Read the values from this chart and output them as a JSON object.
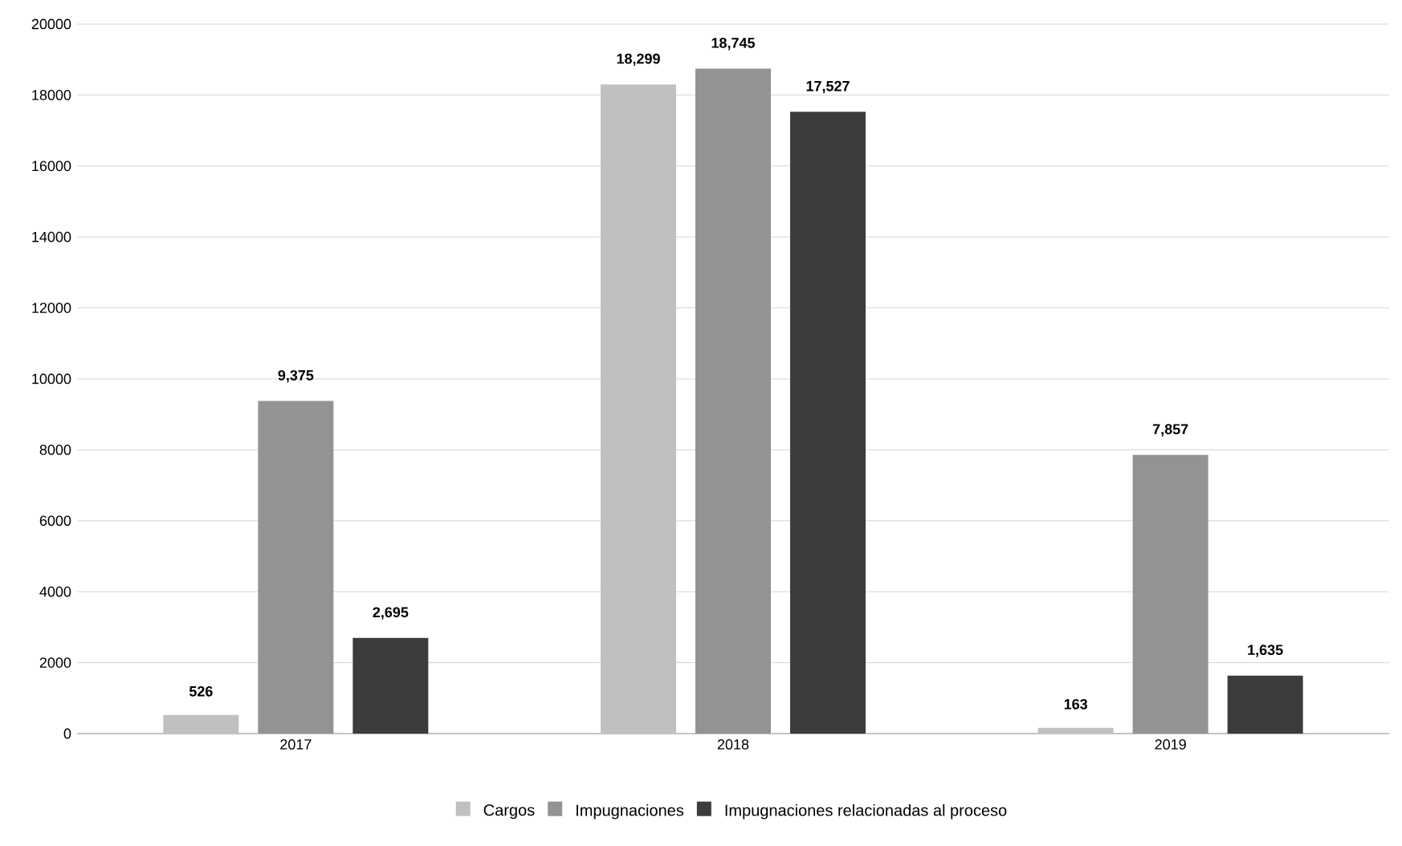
{
  "chart_data": {
    "type": "bar",
    "categories": [
      "2017",
      "2018",
      "2019"
    ],
    "series": [
      {
        "name": "Cargos",
        "color": "#c0c0c2",
        "values": [
          526,
          18299,
          163
        ],
        "value_labels": [
          "526",
          "18,299",
          "163"
        ]
      },
      {
        "name": "Impugnaciones",
        "color": "#939396",
        "values": [
          9375,
          18745,
          7857
        ],
        "value_labels": [
          "9,375",
          "18,745",
          "7,857"
        ]
      },
      {
        "name": "Impugnaciones relacionadas al proceso",
        "color": "#3c3c3e",
        "values": [
          2695,
          17527,
          1635
        ],
        "value_labels": [
          "2,695",
          "17,527",
          "1,635"
        ]
      }
    ],
    "ylim": [
      0,
      20000
    ],
    "yticks": [
      0,
      2000,
      4000,
      6000,
      8000,
      10000,
      12000,
      14000,
      16000,
      18000,
      20000
    ],
    "grid": "y",
    "legend": "bottom"
  }
}
